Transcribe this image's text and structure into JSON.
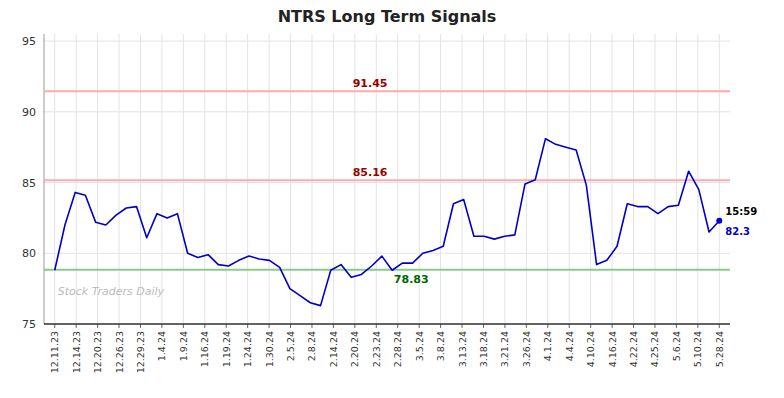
{
  "chart_data": {
    "type": "line",
    "title": "NTRS Long Term Signals",
    "color": "#0000cc",
    "grid": true,
    "xlim": [
      -0.5,
      31.5
    ],
    "xticks": [
      {
        "value": 0,
        "label": "12.11.23"
      },
      {
        "value": 1,
        "label": "12.14.23"
      },
      {
        "value": 2,
        "label": "12.20.23"
      },
      {
        "value": 3,
        "label": "12.26.23"
      },
      {
        "value": 4,
        "label": "12.29.23"
      },
      {
        "value": 5,
        "label": "1.4.24"
      },
      {
        "value": 6,
        "label": "1.9.24"
      },
      {
        "value": 7,
        "label": "1.16.24"
      },
      {
        "value": 8,
        "label": "1.19.24"
      },
      {
        "value": 9,
        "label": "1.24.24"
      },
      {
        "value": 10,
        "label": "1.30.24"
      },
      {
        "value": 11,
        "label": "2.5.24"
      },
      {
        "value": 12,
        "label": "2.8.24"
      },
      {
        "value": 13,
        "label": "2.14.24"
      },
      {
        "value": 14,
        "label": "2.20.24"
      },
      {
        "value": 15,
        "label": "2.23.24"
      },
      {
        "value": 16,
        "label": "2.28.24"
      },
      {
        "value": 17,
        "label": "3.5.24"
      },
      {
        "value": 18,
        "label": "3.8.24"
      },
      {
        "value": 19,
        "label": "3.13.24"
      },
      {
        "value": 20,
        "label": "3.18.24"
      },
      {
        "value": 21,
        "label": "3.21.24"
      },
      {
        "value": 22,
        "label": "3.26.24"
      },
      {
        "value": 23,
        "label": "4.1.24"
      },
      {
        "value": 24,
        "label": "4.4.24"
      },
      {
        "value": 25,
        "label": "4.10.24"
      },
      {
        "value": 26,
        "label": "4.16.24"
      },
      {
        "value": 27,
        "label": "4.22.24"
      },
      {
        "value": 28,
        "label": "4.25.24"
      },
      {
        "value": 29,
        "label": "5.6.24"
      },
      {
        "value": 30,
        "label": "5.10.24"
      },
      {
        "value": 31,
        "label": "5.28.24"
      }
    ],
    "ylim": [
      75,
      95.5
    ],
    "yticks": [
      75,
      80,
      85,
      90,
      95
    ],
    "x": [
      0,
      0.4769,
      0.9538,
      1.4308,
      1.9077,
      2.3846,
      2.8615,
      3.3385,
      3.8154,
      4.2923,
      4.7692,
      5.2462,
      5.7231,
      6.2,
      6.6769,
      7.1538,
      7.6308,
      8.1077,
      8.5846,
      9.0615,
      9.5385,
      10.0154,
      10.4923,
      10.9692,
      11.4462,
      11.9231,
      12.4,
      12.8769,
      13.3538,
      13.8308,
      14.3077,
      14.7846,
      15.2615,
      15.7385,
      16.2154,
      16.6923,
      17.1692,
      17.6462,
      18.1231,
      18.6,
      19.0769,
      19.5538,
      20.0308,
      20.5077,
      20.9846,
      21.4615,
      21.9385,
      22.4154,
      22.8923,
      23.3692,
      23.8462,
      24.3231,
      24.8,
      25.2769,
      25.7538,
      26.2308,
      26.7077,
      27.1846,
      27.6615,
      28.1385,
      28.6154,
      29.0923,
      29.5692,
      30.0462,
      30.5231,
      31
    ],
    "values": [
      78.8,
      82.0,
      84.3,
      84.1,
      82.2,
      82.0,
      82.7,
      83.2,
      83.3,
      81.1,
      82.8,
      82.5,
      82.8,
      80.0,
      79.7,
      79.9,
      79.2,
      79.1,
      79.5,
      79.8,
      79.6,
      79.5,
      79.0,
      77.5,
      77.0,
      76.5,
      76.3,
      78.8,
      79.2,
      78.3,
      78.5,
      79.1,
      79.8,
      78.8,
      79.3,
      79.3,
      80.0,
      80.2,
      80.5,
      83.5,
      83.8,
      81.2,
      81.2,
      81.0,
      81.2,
      81.3,
      84.9,
      85.2,
      88.1,
      87.7,
      87.5,
      87.3,
      84.8,
      79.2,
      79.5,
      80.5,
      83.5,
      83.3,
      83.3,
      82.8,
      83.3,
      83.4,
      85.8,
      84.5,
      81.5,
      82.3
    ],
    "hlines": [
      {
        "value": 91.45,
        "label": "91.45",
        "color": "#ffaaaa",
        "label_color": "#990000"
      },
      {
        "value": 85.16,
        "label": "85.16",
        "color": "#ffaaaa",
        "label_color": "#990000"
      },
      {
        "value": 78.83,
        "label": "78.83",
        "color": "#88cc88",
        "label_color": "#006600"
      }
    ],
    "last_point": {
      "time": "15:59",
      "price": 82.3,
      "time_color": "#000000",
      "color": "#0000cc"
    },
    "watermark": "Stock Traders Daily",
    "watermark_color": "#bbbbbb"
  }
}
